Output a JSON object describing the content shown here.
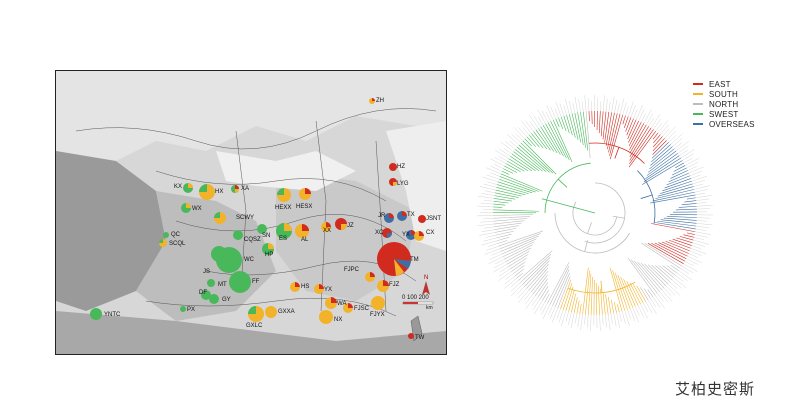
{
  "map": {
    "north_label": "N",
    "scale_label": "0 100 200",
    "scale_unit": "km",
    "colors": {
      "east": "#d12b20",
      "south": "#f2b32a",
      "north": "#c8c8c8",
      "swest": "#49b85a",
      "overseas": "#3d6fa5"
    },
    "sites": [
      {
        "code": "ZH"
      },
      {
        "code": "XA"
      },
      {
        "code": "KX"
      },
      {
        "code": "HX"
      },
      {
        "code": "WX"
      },
      {
        "code": "HEXX"
      },
      {
        "code": "HESX"
      },
      {
        "code": "SCWY"
      },
      {
        "code": "QC"
      },
      {
        "code": "SCQL"
      },
      {
        "code": "CQSZ"
      },
      {
        "code": "SN"
      },
      {
        "code": "ES"
      },
      {
        "code": "AL"
      },
      {
        "code": "XX"
      },
      {
        "code": "JZ"
      },
      {
        "code": "WC"
      },
      {
        "code": "JS"
      },
      {
        "code": "HP"
      },
      {
        "code": "FF"
      },
      {
        "code": "MT"
      },
      {
        "code": "DF"
      },
      {
        "code": "GY"
      },
      {
        "code": "YNTC"
      },
      {
        "code": "PX"
      },
      {
        "code": "GXLC"
      },
      {
        "code": "GXXA"
      },
      {
        "code": "HS"
      },
      {
        "code": "YX"
      },
      {
        "code": "WA"
      },
      {
        "code": "FJSC"
      },
      {
        "code": "NX"
      },
      {
        "code": "FJPC"
      },
      {
        "code": "FJZ"
      },
      {
        "code": "FJYX"
      },
      {
        "code": "TM"
      },
      {
        "code": "XC"
      },
      {
        "code": "YX"
      },
      {
        "code": "CX"
      },
      {
        "code": "JR"
      },
      {
        "code": "TX"
      },
      {
        "code": "JSNT"
      },
      {
        "code": "HZ"
      },
      {
        "code": "LYG"
      },
      {
        "code": "TW"
      }
    ]
  },
  "legend": [
    {
      "label": "EAST",
      "color": "#d12b20"
    },
    {
      "label": "SOUTH",
      "color": "#f2b32a"
    },
    {
      "label": "NORTH",
      "color": "#bdbdbd"
    },
    {
      "label": "SWEST",
      "color": "#49b85a"
    },
    {
      "label": "OVERSEAS",
      "color": "#3d6fa5"
    }
  ],
  "watermark": "艾柏史密斯"
}
